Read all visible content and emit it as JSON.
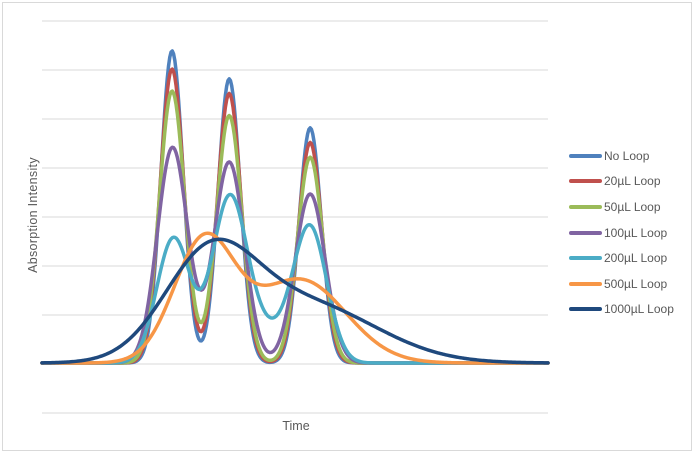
{
  "chart_data": {
    "type": "line",
    "title": "",
    "xlabel": "Time",
    "ylabel": "Absorption  Intensity",
    "xlim": [
      0,
      100
    ],
    "ylim": [
      -1,
      7
    ],
    "y_gridlines": [
      -1,
      0,
      1,
      2,
      3,
      4,
      5,
      6,
      7
    ],
    "grid": true,
    "tick_labels_shown": false,
    "legend_position": "right",
    "model": "sum of gaussian peaks (center, height, sigma in data units)",
    "series": [
      {
        "name": "No Loop",
        "color": "#4F81BD",
        "peaks": [
          {
            "center": 25.7,
            "height": 6.37,
            "sigma": 2.2
          },
          {
            "center": 37,
            "height": 5.8,
            "sigma": 2.2
          },
          {
            "center": 53,
            "height": 4.8,
            "sigma": 2.2
          }
        ]
      },
      {
        "name": "20µL Loop",
        "color": "#C0504D",
        "peaks": [
          {
            "center": 25.7,
            "height": 6.0,
            "sigma": 2.35
          },
          {
            "center": 37,
            "height": 5.5,
            "sigma": 2.35
          },
          {
            "center": 53,
            "height": 4.5,
            "sigma": 2.35
          }
        ]
      },
      {
        "name": "50µL Loop",
        "color": "#9BBB59",
        "peaks": [
          {
            "center": 25.7,
            "height": 5.55,
            "sigma": 2.5
          },
          {
            "center": 37,
            "height": 5.05,
            "sigma": 2.5
          },
          {
            "center": 53,
            "height": 4.2,
            "sigma": 2.5
          }
        ]
      },
      {
        "name": "100µL Loop",
        "color": "#8064A2",
        "peaks": [
          {
            "center": 25.8,
            "height": 4.4,
            "sigma": 3.0
          },
          {
            "center": 37,
            "height": 4.1,
            "sigma": 3.0
          },
          {
            "center": 53,
            "height": 3.45,
            "sigma": 3.0
          }
        ]
      },
      {
        "name": "200µL Loop",
        "color": "#4BACC6",
        "peaks": [
          {
            "center": 26,
            "height": 2.55,
            "sigma": 3.3
          },
          {
            "center": 37,
            "height": 3.2,
            "sigma": 3.4
          },
          {
            "center": 53,
            "height": 2.7,
            "sigma": 3.3
          },
          {
            "center": 44,
            "height": 0.6,
            "sigma": 5
          }
        ]
      },
      {
        "name": "500µL Loop",
        "color": "#F79646",
        "peaks": [
          {
            "center": 32,
            "height": 2.45,
            "sigma": 6.0
          },
          {
            "center": 51,
            "height": 1.7,
            "sigma": 9
          }
        ]
      },
      {
        "name": "1000µL Loop",
        "color": "#1F497D",
        "peaks": [
          {
            "center": 33,
            "height": 2.0,
            "sigma": 9
          },
          {
            "center": 52,
            "height": 1.2,
            "sigma": 14
          }
        ]
      }
    ]
  }
}
